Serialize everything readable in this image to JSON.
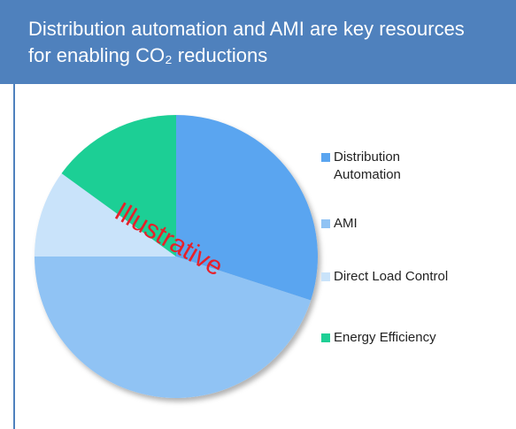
{
  "chart_data": {
    "type": "pie",
    "title": "Distribution automation and AMI are key resources for enabling CO₂ reductions",
    "annotation": "Illustrative",
    "categories": [
      "Distribution Automation",
      "AMI",
      "Direct Load Control",
      "Energy Efficiency"
    ],
    "values": [
      30,
      45,
      10,
      15
    ],
    "colors": [
      "#5aa5f0",
      "#90c3f4",
      "#c9e3fa",
      "#1ecf95"
    ],
    "legend": "right"
  }
}
